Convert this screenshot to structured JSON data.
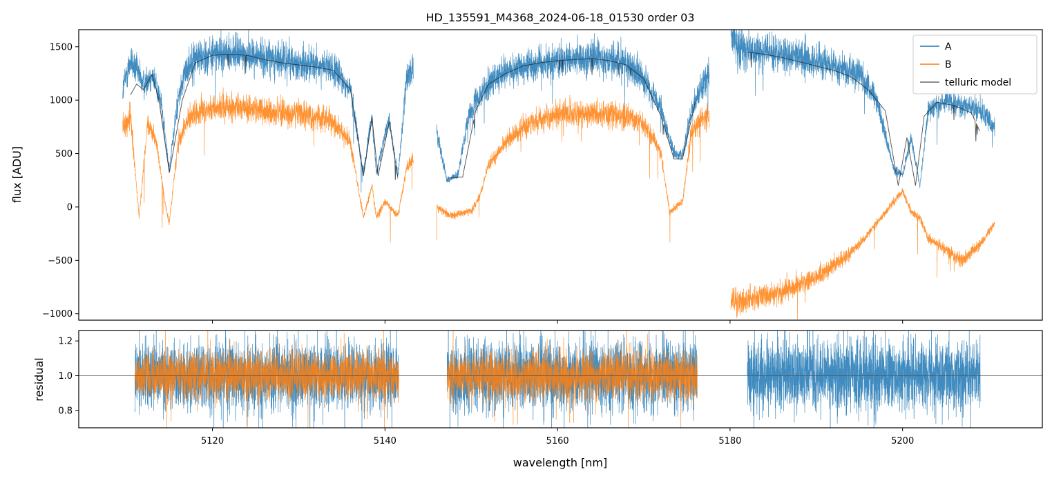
{
  "chart_data": [
    {
      "type": "line",
      "panel": "flux",
      "title": "HD_135591_M4368_2024-06-18_01530  order 03",
      "xlabel": "",
      "ylabel": "flux [ADU]",
      "xlim": [
        5104.5,
        5216.2
      ],
      "ylim": [
        -1060,
        1660
      ],
      "yticks": [
        -1000,
        -500,
        0,
        500,
        1000,
        1500
      ],
      "yticklabels": [
        "−1000",
        "−500",
        "0",
        "500",
        "1000",
        "1500"
      ],
      "xticks": [
        5120,
        5140,
        5160,
        5180,
        5200
      ],
      "legend": {
        "location": "top-right",
        "entries": [
          "A",
          "B",
          "telluric model"
        ]
      },
      "series": [
        {
          "name": "A",
          "color": "#1f77b4",
          "x": [
            5109.6,
            5110.5,
            5112.0,
            5113.0,
            5114.0,
            5115.0,
            5116.0,
            5117.0,
            5118.0,
            5120.0,
            5122.0,
            5124.0,
            5126.0,
            5128.0,
            5130.0,
            5132.0,
            5134.0,
            5136.0,
            5137.5,
            5138.5,
            5139.0,
            5140.5,
            5141.5,
            5142.5,
            5143.3,
            null,
            5146.0,
            5147.2,
            5148.5,
            5149.5,
            5150.5,
            5152.0,
            5154.0,
            5156.0,
            5158.0,
            5160.0,
            5162.0,
            5164.0,
            5166.0,
            5168.0,
            5170.0,
            5172.0,
            5173.5,
            5174.5,
            5175.5,
            5176.5,
            5177.6,
            null,
            5180.1,
            5181.0,
            5183.0,
            5185.0,
            5187.0,
            5189.0,
            5191.0,
            5193.0,
            5195.0,
            5197.0,
            5199.0,
            5200.0,
            5201.0,
            5202.0,
            5203.0,
            5205.0,
            5207.0,
            5209.0,
            5210.7
          ],
          "y": [
            1100,
            1380,
            1150,
            1240,
            1000,
            350,
            1000,
            1300,
            1400,
            1430,
            1440,
            1430,
            1400,
            1380,
            1350,
            1330,
            1290,
            1100,
            320,
            850,
            320,
            820,
            280,
            1200,
            1300,
            null,
            700,
            250,
            300,
            800,
            1000,
            1150,
            1250,
            1320,
            1350,
            1370,
            1380,
            1400,
            1390,
            1350,
            1200,
            900,
            500,
            480,
            900,
            1100,
            1250,
            null,
            1600,
            1500,
            1450,
            1440,
            1420,
            1380,
            1350,
            1300,
            1250,
            1000,
            350,
            300,
            650,
            200,
            900,
            1000,
            950,
            900,
            750
          ]
        },
        {
          "name": "B",
          "color": "#ff7f0e",
          "x": [
            5109.6,
            5110.5,
            5111.5,
            5112.5,
            5113.5,
            5114.5,
            5115.0,
            5116.0,
            5117.0,
            5118.0,
            5120.0,
            5122.0,
            5124.0,
            5126.0,
            5128.0,
            5130.0,
            5132.0,
            5134.0,
            5136.0,
            5137.5,
            5138.5,
            5139.0,
            5140.0,
            5141.5,
            5142.5,
            5143.3,
            null,
            5146.0,
            5147.5,
            5149.0,
            5150.0,
            5151.0,
            5152.0,
            5154.0,
            5156.0,
            5158.0,
            5160.0,
            5162.0,
            5164.0,
            5166.0,
            5168.0,
            5170.0,
            5172.0,
            5173.0,
            5174.5,
            5175.5,
            5176.5,
            5177.6,
            null,
            5180.1,
            5181.0,
            5183.0,
            5185.0,
            5187.0,
            5189.0,
            5191.0,
            5193.0,
            5195.0,
            5197.0,
            5199.0,
            5200.0,
            5201.0,
            5202.0,
            5203.0,
            5205.0,
            5207.0,
            5209.0,
            5210.7
          ],
          "y": [
            750,
            850,
            -100,
            800,
            600,
            50,
            -150,
            600,
            800,
            880,
            920,
            940,
            930,
            900,
            880,
            870,
            850,
            800,
            600,
            -100,
            200,
            -100,
            50,
            -80,
            350,
            450,
            null,
            0,
            -80,
            -60,
            -40,
            100,
            400,
            600,
            750,
            820,
            860,
            880,
            870,
            860,
            840,
            780,
            500,
            -50,
            50,
            700,
            800,
            850,
            null,
            -880,
            -900,
            -850,
            -820,
            -750,
            -700,
            -600,
            -500,
            -350,
            -150,
            50,
            150,
            -50,
            -100,
            -300,
            -400,
            -500,
            -350,
            -150
          ]
        },
        {
          "name": "telluric model",
          "color": "#222222",
          "x": [
            5110.5,
            5111.2,
            5112.0,
            5113.0,
            5113.8,
            5115.0,
            5116.5,
            5118.0,
            5120.0,
            5122.0,
            5124.0,
            5126.0,
            5128.0,
            5130.0,
            5132.0,
            5134.0,
            5136.0,
            5137.5,
            5138.5,
            5139.2,
            5140.5,
            5141.5,
            null,
            5147.2,
            5149.0,
            5150.5,
            5152.0,
            5154.0,
            5156.0,
            5158.0,
            5160.0,
            5162.0,
            5164.0,
            5166.0,
            5168.0,
            5170.0,
            5172.0,
            5173.5,
            5174.5,
            5176.0,
            null,
            5182.0,
            5184.0,
            5186.0,
            5188.0,
            5190.0,
            5192.0,
            5194.0,
            5196.0,
            5198.0,
            5199.5,
            5200.5,
            5201.5,
            5202.5,
            5204.0,
            5206.0,
            5208.0,
            5209.0
          ],
          "y": [
            1050,
            1150,
            1100,
            1240,
            1000,
            320,
            1000,
            1350,
            1420,
            1430,
            1420,
            1380,
            1350,
            1330,
            1310,
            1280,
            1100,
            290,
            830,
            290,
            800,
            260,
            null,
            270,
            280,
            900,
            1150,
            1250,
            1320,
            1350,
            1370,
            1380,
            1390,
            1370,
            1330,
            1200,
            850,
            450,
            450,
            1000,
            null,
            1450,
            1430,
            1400,
            1360,
            1320,
            1280,
            1220,
            1100,
            900,
            200,
            650,
            200,
            850,
            980,
            950,
            880,
            700
          ]
        }
      ]
    },
    {
      "type": "line",
      "panel": "residual",
      "title": "",
      "xlabel": "wavelength [nm]",
      "ylabel": "residual",
      "xlim": [
        5104.5,
        5216.2
      ],
      "ylim": [
        0.7,
        1.26
      ],
      "yticks": [
        0.8,
        1.0,
        1.2
      ],
      "yticklabels": [
        "0.8",
        "1.0",
        "1.2"
      ],
      "xticks": [
        5120,
        5140,
        5160,
        5180,
        5200
      ],
      "xticklabels": [
        "5120",
        "5140",
        "5160",
        "5180",
        "5200"
      ],
      "reference_line": 1.0,
      "series": [
        {
          "name": "A",
          "color": "#1f77b4",
          "segments": [
            [
              5111.0,
              5141.6
            ],
            [
              5147.2,
              5176.2
            ],
            [
              5182.0,
              5209.0
            ]
          ],
          "y_center": 1.0,
          "y_spread": 0.22
        },
        {
          "name": "B",
          "color": "#ff7f0e",
          "segments": [
            [
              5111.0,
              5141.6
            ],
            [
              5147.2,
              5176.2
            ]
          ],
          "y_center": 1.0,
          "y_spread": 0.15
        }
      ]
    }
  ]
}
